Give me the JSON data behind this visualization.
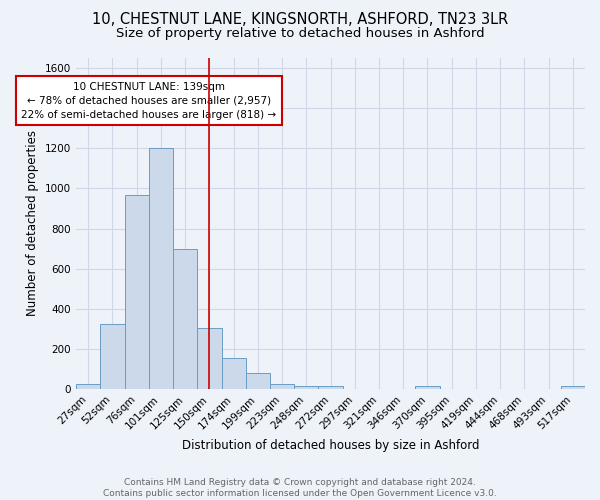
{
  "title1": "10, CHESTNUT LANE, KINGSNORTH, ASHFORD, TN23 3LR",
  "title2": "Size of property relative to detached houses in Ashford",
  "xlabel": "Distribution of detached houses by size in Ashford",
  "ylabel": "Number of detached properties",
  "categories": [
    "27sqm",
    "52sqm",
    "76sqm",
    "101sqm",
    "125sqm",
    "150sqm",
    "174sqm",
    "199sqm",
    "223sqm",
    "248sqm",
    "272sqm",
    "297sqm",
    "321sqm",
    "346sqm",
    "370sqm",
    "395sqm",
    "419sqm",
    "444sqm",
    "468sqm",
    "493sqm",
    "517sqm"
  ],
  "values": [
    25,
    325,
    965,
    1200,
    700,
    305,
    155,
    80,
    25,
    15,
    15,
    0,
    0,
    0,
    15,
    0,
    0,
    0,
    0,
    0,
    15
  ],
  "bar_color": "#ccd9ea",
  "bar_edge_color": "#6a9cc4",
  "red_line_x": 5.0,
  "annotation_text_line1": "10 CHESTNUT LANE: 139sqm",
  "annotation_text_line2": "← 78% of detached houses are smaller (2,957)",
  "annotation_text_line3": "22% of semi-detached houses are larger (818) →",
  "annotation_box_facecolor": "#ffffff",
  "annotation_box_edgecolor": "#cc0000",
  "red_line_color": "#cc0000",
  "ylim_min": 0,
  "ylim_max": 1650,
  "yticks": [
    0,
    200,
    400,
    600,
    800,
    1000,
    1200,
    1400,
    1600
  ],
  "background_color": "#eef2f9",
  "grid_color": "#d0d8e8",
  "footer_line1": "Contains HM Land Registry data © Crown copyright and database right 2024.",
  "footer_line2": "Contains public sector information licensed under the Open Government Licence v3.0.",
  "title1_fontsize": 10.5,
  "title2_fontsize": 9.5,
  "xlabel_fontsize": 8.5,
  "ylabel_fontsize": 8.5,
  "tick_fontsize": 7.5,
  "annotation_fontsize": 7.5,
  "footer_fontsize": 6.5
}
